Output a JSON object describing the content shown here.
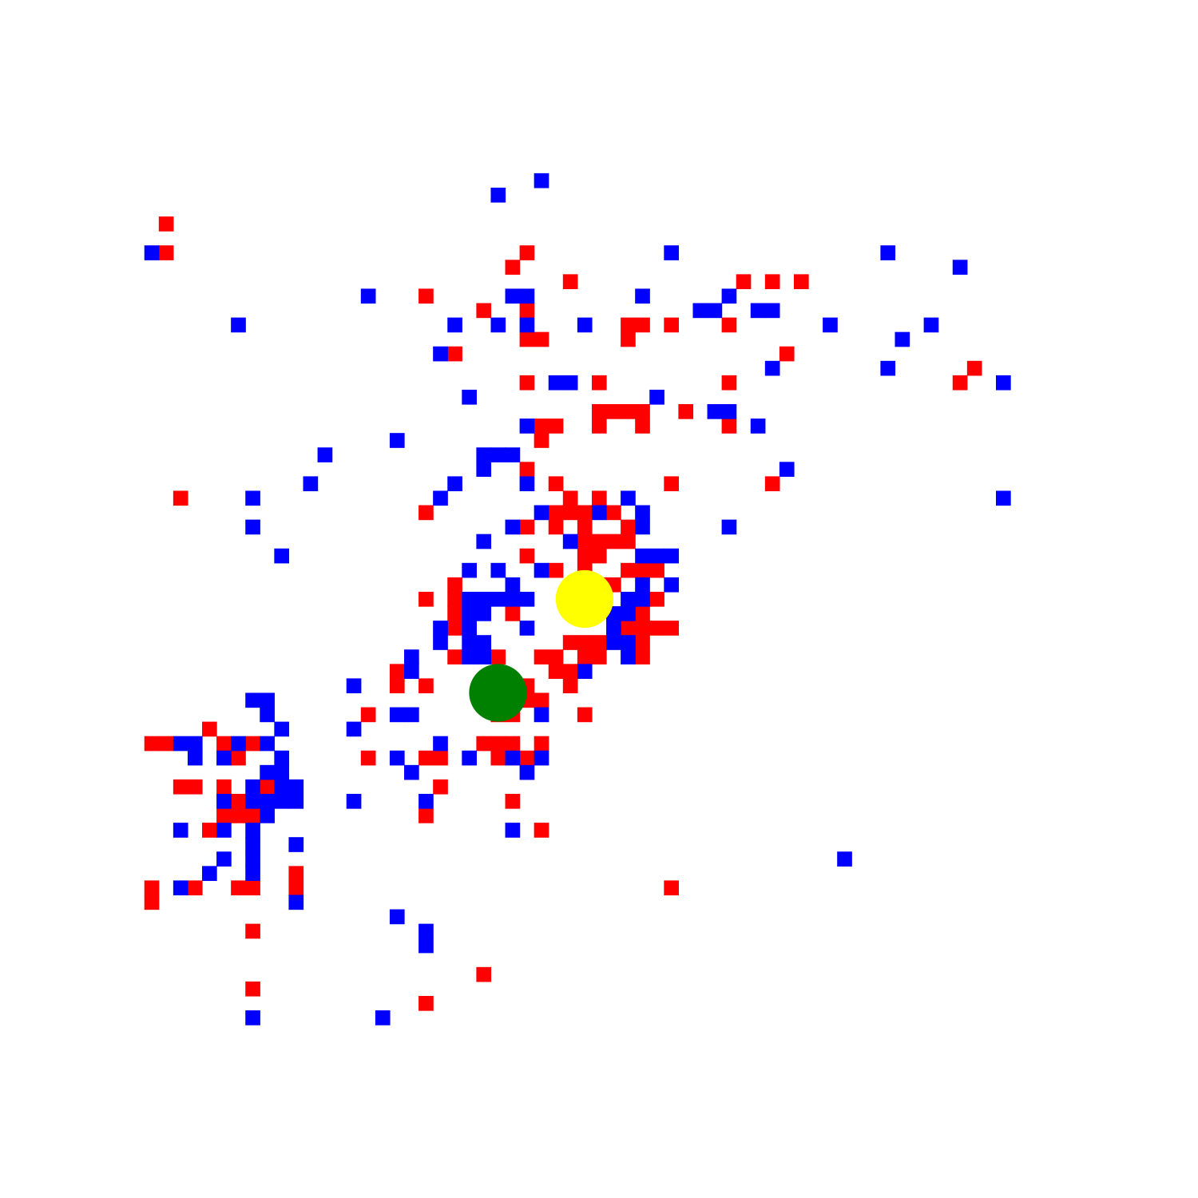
{
  "colors": {
    "background": "#ffffff",
    "red": "#ff0000",
    "blue": "#0000ff",
    "yellow": "#ffff00",
    "green": "#008000"
  },
  "grid": {
    "columns": 83,
    "rows": 83
  },
  "tokens": [
    {
      "kind": "yellow-circle",
      "color": "yellow",
      "cell": [
        40,
        41
      ]
    },
    {
      "kind": "green-circle",
      "color": "green",
      "cell": [
        34,
        47.5
      ]
    }
  ],
  "red_cells": [
    [
      11,
      15
    ],
    [
      11,
      17
    ],
    [
      36,
      17
    ],
    [
      35,
      18
    ],
    [
      39,
      19
    ],
    [
      51,
      19
    ],
    [
      53,
      19
    ],
    [
      55,
      19
    ],
    [
      29,
      20
    ],
    [
      33,
      21
    ],
    [
      36,
      21
    ],
    [
      43,
      22
    ],
    [
      44,
      22
    ],
    [
      46,
      22
    ],
    [
      50,
      22
    ],
    [
      36,
      23
    ],
    [
      37,
      23
    ],
    [
      43,
      23
    ],
    [
      54,
      24
    ],
    [
      31,
      24
    ],
    [
      67,
      25
    ],
    [
      36,
      26
    ],
    [
      41,
      26
    ],
    [
      50,
      26
    ],
    [
      66,
      26
    ],
    [
      41,
      28
    ],
    [
      42,
      28
    ],
    [
      43,
      28
    ],
    [
      44,
      28
    ],
    [
      47,
      28
    ],
    [
      37,
      29
    ],
    [
      38,
      29
    ],
    [
      41,
      29
    ],
    [
      44,
      29
    ],
    [
      50,
      29
    ],
    [
      37,
      30
    ],
    [
      36,
      32
    ],
    [
      38,
      33
    ],
    [
      46,
      33
    ],
    [
      53,
      33
    ],
    [
      12,
      34
    ],
    [
      39,
      34
    ],
    [
      41,
      34
    ],
    [
      29,
      35
    ],
    [
      38,
      35
    ],
    [
      39,
      35
    ],
    [
      40,
      35
    ],
    [
      42,
      35
    ],
    [
      36,
      36
    ],
    [
      38,
      36
    ],
    [
      40,
      36
    ],
    [
      43,
      36
    ],
    [
      40,
      37
    ],
    [
      41,
      37
    ],
    [
      42,
      37
    ],
    [
      43,
      37
    ],
    [
      36,
      38
    ],
    [
      40,
      38
    ],
    [
      41,
      38
    ],
    [
      38,
      39
    ],
    [
      40,
      39
    ],
    [
      43,
      39
    ],
    [
      44,
      39
    ],
    [
      45,
      39
    ],
    [
      31,
      40
    ],
    [
      41,
      40
    ],
    [
      42,
      40
    ],
    [
      29,
      41
    ],
    [
      31,
      41
    ],
    [
      41,
      41
    ],
    [
      45,
      41
    ],
    [
      31,
      42
    ],
    [
      35,
      42
    ],
    [
      44,
      42
    ],
    [
      31,
      43
    ],
    [
      43,
      43
    ],
    [
      44,
      43
    ],
    [
      45,
      43
    ],
    [
      46,
      43
    ],
    [
      39,
      44
    ],
    [
      40,
      44
    ],
    [
      41,
      44
    ],
    [
      44,
      44
    ],
    [
      31,
      45
    ],
    [
      34,
      45
    ],
    [
      37,
      45
    ],
    [
      38,
      45
    ],
    [
      40,
      45
    ],
    [
      41,
      45
    ],
    [
      44,
      45
    ],
    [
      27,
      46
    ],
    [
      38,
      46
    ],
    [
      39,
      46
    ],
    [
      27,
      47
    ],
    [
      29,
      47
    ],
    [
      35,
      47
    ],
    [
      36,
      47
    ],
    [
      39,
      47
    ],
    [
      35,
      48
    ],
    [
      36,
      48
    ],
    [
      37,
      48
    ],
    [
      25,
      49
    ],
    [
      34,
      49
    ],
    [
      35,
      49
    ],
    [
      40,
      49
    ],
    [
      14,
      50
    ],
    [
      10,
      51
    ],
    [
      11,
      51
    ],
    [
      15,
      51
    ],
    [
      17,
      51
    ],
    [
      33,
      51
    ],
    [
      34,
      51
    ],
    [
      35,
      51
    ],
    [
      37,
      51
    ],
    [
      16,
      52
    ],
    [
      25,
      52
    ],
    [
      29,
      52
    ],
    [
      30,
      52
    ],
    [
      34,
      52
    ],
    [
      36,
      52
    ],
    [
      12,
      54
    ],
    [
      13,
      54
    ],
    [
      15,
      54
    ],
    [
      18,
      54
    ],
    [
      30,
      54
    ],
    [
      16,
      55
    ],
    [
      35,
      55
    ],
    [
      15,
      56
    ],
    [
      16,
      56
    ],
    [
      17,
      56
    ],
    [
      29,
      56
    ],
    [
      14,
      57
    ],
    [
      37,
      57
    ],
    [
      20,
      60
    ],
    [
      10,
      61
    ],
    [
      13,
      61
    ],
    [
      16,
      61
    ],
    [
      17,
      61
    ],
    [
      20,
      61
    ],
    [
      46,
      61
    ],
    [
      10,
      62
    ],
    [
      17,
      64
    ],
    [
      33,
      67
    ],
    [
      17,
      68
    ],
    [
      29,
      69
    ]
  ],
  "blue_cells": [
    [
      37,
      12
    ],
    [
      34,
      13
    ],
    [
      10,
      17
    ],
    [
      46,
      17
    ],
    [
      61,
      17
    ],
    [
      66,
      18
    ],
    [
      25,
      20
    ],
    [
      35,
      20
    ],
    [
      36,
      20
    ],
    [
      44,
      20
    ],
    [
      50,
      20
    ],
    [
      48,
      21
    ],
    [
      49,
      21
    ],
    [
      52,
      21
    ],
    [
      53,
      21
    ],
    [
      16,
      22
    ],
    [
      31,
      22
    ],
    [
      34,
      22
    ],
    [
      36,
      22
    ],
    [
      40,
      22
    ],
    [
      57,
      22
    ],
    [
      64,
      22
    ],
    [
      62,
      23
    ],
    [
      30,
      24
    ],
    [
      53,
      25
    ],
    [
      61,
      25
    ],
    [
      38,
      26
    ],
    [
      39,
      26
    ],
    [
      69,
      26
    ],
    [
      32,
      27
    ],
    [
      45,
      27
    ],
    [
      49,
      28
    ],
    [
      50,
      28
    ],
    [
      36,
      29
    ],
    [
      52,
      29
    ],
    [
      27,
      30
    ],
    [
      22,
      31
    ],
    [
      33,
      31
    ],
    [
      34,
      31
    ],
    [
      35,
      31
    ],
    [
      33,
      32
    ],
    [
      54,
      32
    ],
    [
      21,
      33
    ],
    [
      31,
      33
    ],
    [
      36,
      33
    ],
    [
      17,
      34
    ],
    [
      30,
      34
    ],
    [
      43,
      34
    ],
    [
      69,
      34
    ],
    [
      37,
      35
    ],
    [
      41,
      35
    ],
    [
      44,
      35
    ],
    [
      17,
      36
    ],
    [
      35,
      36
    ],
    [
      44,
      36
    ],
    [
      50,
      36
    ],
    [
      33,
      37
    ],
    [
      39,
      37
    ],
    [
      19,
      38
    ],
    [
      44,
      38
    ],
    [
      45,
      38
    ],
    [
      46,
      38
    ],
    [
      32,
      39
    ],
    [
      34,
      39
    ],
    [
      37,
      39
    ],
    [
      35,
      40
    ],
    [
      44,
      40
    ],
    [
      46,
      40
    ],
    [
      32,
      41
    ],
    [
      33,
      41
    ],
    [
      34,
      41
    ],
    [
      35,
      41
    ],
    [
      36,
      41
    ],
    [
      43,
      41
    ],
    [
      44,
      41
    ],
    [
      32,
      42
    ],
    [
      33,
      42
    ],
    [
      42,
      42
    ],
    [
      43,
      42
    ],
    [
      30,
      43
    ],
    [
      32,
      43
    ],
    [
      36,
      43
    ],
    [
      42,
      43
    ],
    [
      30,
      44
    ],
    [
      32,
      44
    ],
    [
      33,
      44
    ],
    [
      42,
      44
    ],
    [
      43,
      44
    ],
    [
      28,
      45
    ],
    [
      32,
      45
    ],
    [
      33,
      45
    ],
    [
      43,
      45
    ],
    [
      28,
      46
    ],
    [
      40,
      46
    ],
    [
      24,
      47
    ],
    [
      17,
      48
    ],
    [
      18,
      48
    ],
    [
      18,
      49
    ],
    [
      27,
      49
    ],
    [
      28,
      49
    ],
    [
      37,
      49
    ],
    [
      19,
      50
    ],
    [
      24,
      50
    ],
    [
      12,
      51
    ],
    [
      13,
      51
    ],
    [
      16,
      51
    ],
    [
      18,
      51
    ],
    [
      30,
      51
    ],
    [
      13,
      52
    ],
    [
      15,
      52
    ],
    [
      19,
      52
    ],
    [
      27,
      52
    ],
    [
      32,
      52
    ],
    [
      35,
      52
    ],
    [
      37,
      52
    ],
    [
      18,
      53
    ],
    [
      19,
      53
    ],
    [
      28,
      53
    ],
    [
      36,
      53
    ],
    [
      17,
      54
    ],
    [
      19,
      54
    ],
    [
      20,
      54
    ],
    [
      15,
      55
    ],
    [
      17,
      55
    ],
    [
      18,
      55
    ],
    [
      19,
      55
    ],
    [
      20,
      55
    ],
    [
      24,
      55
    ],
    [
      29,
      55
    ],
    [
      18,
      56
    ],
    [
      12,
      57
    ],
    [
      15,
      57
    ],
    [
      17,
      57
    ],
    [
      35,
      57
    ],
    [
      17,
      58
    ],
    [
      20,
      58
    ],
    [
      15,
      59
    ],
    [
      17,
      59
    ],
    [
      58,
      59
    ],
    [
      14,
      60
    ],
    [
      17,
      60
    ],
    [
      12,
      61
    ],
    [
      20,
      62
    ],
    [
      27,
      63
    ],
    [
      29,
      64
    ],
    [
      29,
      65
    ],
    [
      17,
      70
    ],
    [
      26,
      70
    ]
  ]
}
